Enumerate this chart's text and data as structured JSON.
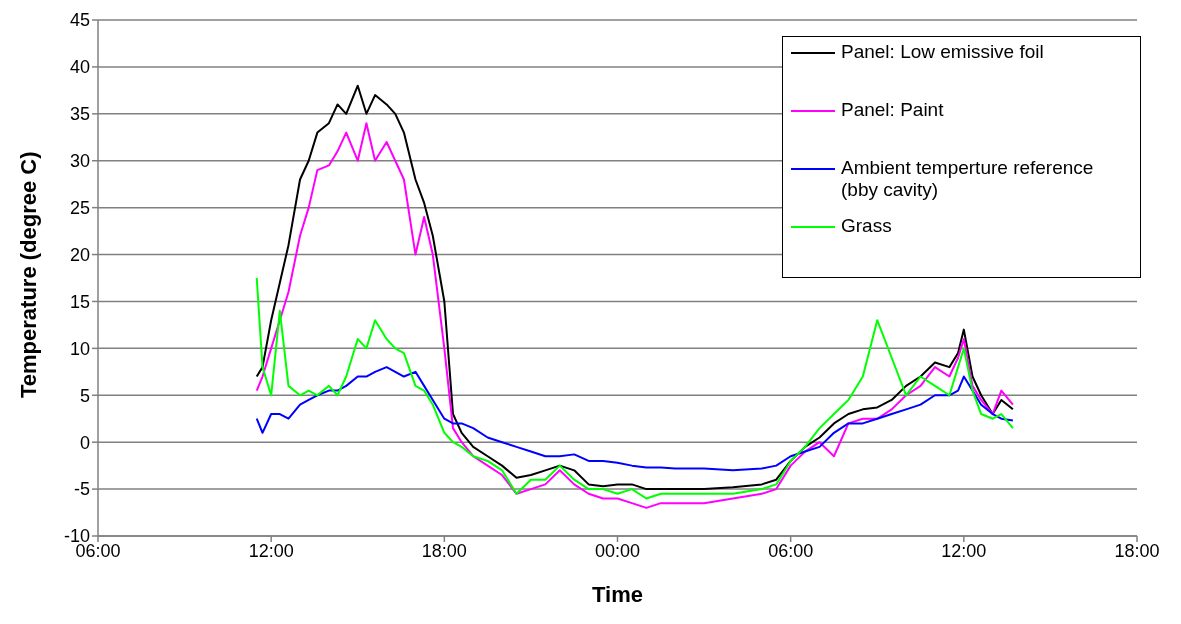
{
  "chart_data": {
    "type": "line",
    "xlabel": "Time",
    "ylabel": "Temperature (degree C)",
    "xlim": [
      "--01-01T06:00",
      "--01-02T18:00"
    ],
    "xticks": [
      {
        "value": "--01-01T06:00",
        "label": "06:00"
      },
      {
        "value": "--01-01T12:00",
        "label": "12:00"
      },
      {
        "value": "--01-01T18:00",
        "label": "18:00"
      },
      {
        "value": "--01-02T00:00",
        "label": "00:00"
      },
      {
        "value": "--01-02T06:00",
        "label": "06:00"
      },
      {
        "value": "--01-02T12:00",
        "label": "12:00"
      },
      {
        "value": "--01-02T18:00",
        "label": "18:00"
      }
    ],
    "ylim": [
      -10,
      45
    ],
    "yticks": [
      -10,
      -5,
      0,
      5,
      10,
      15,
      20,
      25,
      30,
      35,
      40,
      45
    ],
    "grid": "y",
    "legend": "top right",
    "marker": "none",
    "line_style": "solid",
    "x": [
      "--01-01T11:30",
      "--01-01T11:42",
      "--01-01T12:00",
      "--01-01T12:18",
      "--01-01T12:36",
      "--01-01T13:00",
      "--01-01T13:18",
      "--01-01T13:36",
      "--01-01T14:00",
      "--01-01T14:18",
      "--01-01T14:36",
      "--01-01T15:00",
      "--01-01T15:18",
      "--01-01T15:36",
      "--01-01T16:00",
      "--01-01T16:18",
      "--01-01T16:36",
      "--01-01T17:00",
      "--01-01T17:18",
      "--01-01T17:36",
      "--01-01T18:00",
      "--01-01T18:18",
      "--01-01T18:36",
      "--01-01T19:00",
      "--01-01T19:30",
      "--01-01T20:00",
      "--01-01T20:30",
      "--01-01T21:00",
      "--01-01T21:30",
      "--01-01T22:00",
      "--01-01T22:30",
      "--01-01T23:00",
      "--01-01T23:30",
      "--01-02T00:00",
      "--01-02T00:30",
      "--01-02T01:00",
      "--01-02T01:30",
      "--01-02T02:00",
      "--01-02T03:00",
      "--01-02T04:00",
      "--01-02T05:00",
      "--01-02T05:30",
      "--01-02T06:00",
      "--01-02T06:30",
      "--01-02T07:00",
      "--01-02T07:30",
      "--01-02T08:00",
      "--01-02T08:30",
      "--01-02T09:00",
      "--01-02T09:30",
      "--01-02T10:00",
      "--01-02T10:30",
      "--01-02T11:00",
      "--01-02T11:30",
      "--01-02T11:48",
      "--01-02T12:00",
      "--01-02T12:18",
      "--01-02T12:36",
      "--01-02T13:00",
      "--01-02T13:18",
      "--01-02T13:42"
    ],
    "series": [
      {
        "name": "Panel: Low emissive foil",
        "color": "#000000",
        "values": [
          7,
          8,
          13,
          17,
          21,
          28,
          30,
          33,
          34,
          36,
          35,
          38,
          35,
          37,
          36,
          35,
          33,
          28,
          25.5,
          22,
          15,
          3,
          1,
          -0.5,
          -1.5,
          -2.5,
          -3.8,
          -3.5,
          -3,
          -2.5,
          -3,
          -4.5,
          -4.7,
          -4.5,
          -4.5,
          -5,
          -5,
          -5,
          -5,
          -4.8,
          -4.5,
          -4,
          -2,
          -0.5,
          0.5,
          2,
          3,
          3.5,
          3.7,
          4.5,
          6,
          7,
          8.5,
          8,
          9.5,
          12,
          7,
          5,
          3,
          4.5,
          3.5
        ]
      },
      {
        "name": "Panel: Paint",
        "color": "#ff00ff",
        "values": [
          5.5,
          7,
          10,
          13,
          16,
          22,
          25,
          29,
          29.5,
          31,
          33,
          30,
          34,
          30,
          32,
          30,
          28,
          20,
          24,
          20,
          10,
          1.5,
          0,
          -1.5,
          -2.5,
          -3.5,
          -5.5,
          -5,
          -4.5,
          -3,
          -4.5,
          -5.5,
          -6,
          -6,
          -6.5,
          -7,
          -6.5,
          -6.5,
          -6.5,
          -6,
          -5.5,
          -5,
          -2.5,
          -1,
          0,
          -1.5,
          2,
          2.5,
          2.5,
          3.5,
          5,
          6,
          8,
          7,
          9,
          11,
          6,
          4.5,
          3,
          5.5,
          4
        ]
      },
      {
        "name": "Ambient temperture reference (bby cavity)",
        "color": "#0000ff",
        "values": [
          2.5,
          1,
          3,
          3,
          2.5,
          4,
          4.5,
          5,
          5.5,
          5.5,
          6,
          7,
          7,
          7.5,
          8,
          7.5,
          7,
          7.5,
          6,
          4.5,
          2.5,
          2,
          2,
          1.5,
          0.5,
          0,
          -0.5,
          -1,
          -1.5,
          -1.5,
          -1.3,
          -2,
          -2,
          -2.2,
          -2.5,
          -2.7,
          -2.7,
          -2.8,
          -2.8,
          -3,
          -2.8,
          -2.5,
          -1.5,
          -1,
          -0.5,
          1,
          2,
          2,
          2.5,
          3,
          3.5,
          4,
          5,
          5,
          5.5,
          7,
          5.5,
          4,
          3,
          2.5,
          2.3
        ]
      },
      {
        "name": "Grass",
        "color": "#00ff00",
        "values": [
          17.5,
          8,
          5,
          14,
          6,
          5,
          5.5,
          5,
          6,
          5,
          7,
          11,
          10,
          13,
          11,
          10,
          9.5,
          6,
          5.5,
          4,
          1,
          0,
          -0.5,
          -1.5,
          -2,
          -3,
          -5.5,
          -4,
          -4,
          -2.5,
          -4,
          -5,
          -5,
          -5.5,
          -5,
          -6,
          -5.5,
          -5.5,
          -5.5,
          -5.5,
          -5,
          -4.5,
          -2,
          -0.5,
          1.5,
          3,
          4.5,
          7,
          13,
          9,
          5,
          7,
          6,
          5,
          8,
          10,
          5.5,
          3,
          2.5,
          3,
          1.5
        ]
      }
    ]
  }
}
